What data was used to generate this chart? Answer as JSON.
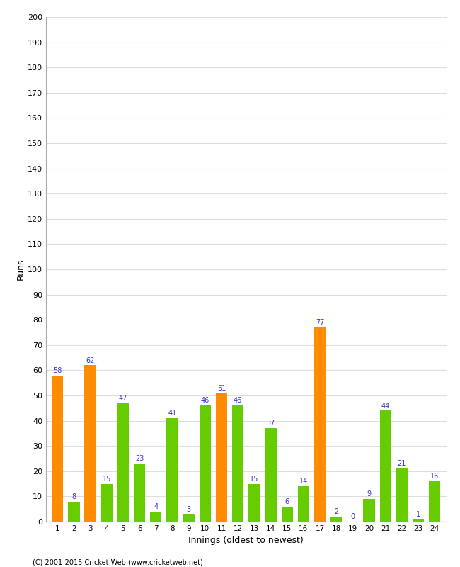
{
  "innings": [
    1,
    2,
    3,
    4,
    5,
    6,
    7,
    8,
    9,
    10,
    11,
    12,
    13,
    14,
    15,
    16,
    17,
    18,
    19,
    20,
    21,
    22,
    23,
    24
  ],
  "runs": [
    58,
    8,
    62,
    15,
    47,
    23,
    4,
    41,
    3,
    46,
    51,
    46,
    15,
    37,
    6,
    14,
    77,
    2,
    0,
    9,
    44,
    21,
    1,
    16
  ],
  "colors": [
    "#ff8c00",
    "#66cc00",
    "#ff8c00",
    "#66cc00",
    "#66cc00",
    "#66cc00",
    "#66cc00",
    "#66cc00",
    "#66cc00",
    "#66cc00",
    "#ff8c00",
    "#66cc00",
    "#66cc00",
    "#66cc00",
    "#66cc00",
    "#66cc00",
    "#ff8c00",
    "#66cc00",
    "#66cc00",
    "#66cc00",
    "#66cc00",
    "#66cc00",
    "#66cc00",
    "#66cc00"
  ],
  "xlabel": "Innings (oldest to newest)",
  "ylabel": "Runs",
  "ylim": [
    0,
    200
  ],
  "yticks": [
    0,
    10,
    20,
    30,
    40,
    50,
    60,
    70,
    80,
    90,
    100,
    110,
    120,
    130,
    140,
    150,
    160,
    170,
    180,
    190,
    200
  ],
  "label_color": "#3333cc",
  "bg_color": "#ffffff",
  "grid_color": "#dddddd",
  "footer": "(C) 2001-2015 Cricket Web (www.cricketweb.net)"
}
